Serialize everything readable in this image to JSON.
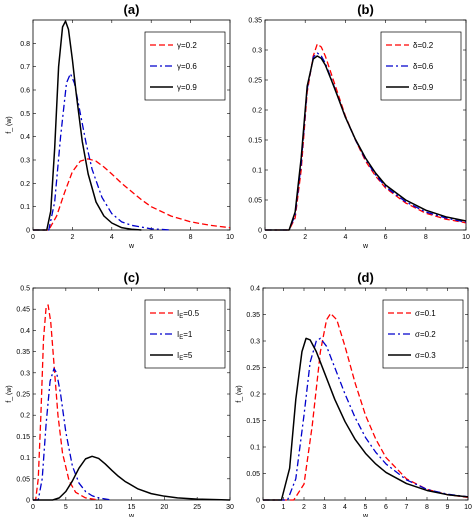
{
  "chart_data": [
    {
      "panel": "(a)",
      "type": "line",
      "title": "(a)",
      "xlabel": "w",
      "ylabel": "f_ (w)",
      "xlim": [
        0,
        10
      ],
      "ylim": [
        0,
        0.9
      ],
      "xticks": [
        0,
        2,
        4,
        6,
        8,
        10
      ],
      "yticks": [
        0,
        0.1,
        0.2,
        0.3,
        0.4,
        0.5,
        0.6,
        0.7,
        0.8
      ],
      "grid": false,
      "legend": "top-right",
      "series": [
        {
          "name": "γ=0.2",
          "color": "#ff0000",
          "style": "dashed",
          "x": [
            0,
            0.8,
            1.2,
            1.6,
            2.0,
            2.4,
            2.8,
            3.2,
            3.6,
            4.0,
            4.5,
            5.0,
            5.5,
            6.0,
            7.0,
            8.0,
            9.0,
            10.0
          ],
          "y": [
            0,
            0,
            0.06,
            0.16,
            0.25,
            0.295,
            0.305,
            0.295,
            0.27,
            0.24,
            0.2,
            0.165,
            0.13,
            0.1,
            0.06,
            0.035,
            0.02,
            0.01
          ]
        },
        {
          "name": "γ=0.6",
          "color": "#0000cc",
          "style": "dashdot",
          "x": [
            0,
            0.8,
            1.1,
            1.4,
            1.7,
            1.9,
            2.1,
            2.4,
            2.7,
            3.0,
            3.5,
            4.0,
            4.5,
            5.0,
            6.0,
            7.0
          ],
          "y": [
            0,
            0,
            0.12,
            0.4,
            0.63,
            0.67,
            0.63,
            0.5,
            0.37,
            0.26,
            0.14,
            0.07,
            0.035,
            0.02,
            0.005,
            0
          ]
        },
        {
          "name": "γ=0.9",
          "color": "#000000",
          "style": "solid",
          "x": [
            0,
            0.7,
            0.9,
            1.1,
            1.3,
            1.5,
            1.65,
            1.8,
            2.0,
            2.2,
            2.5,
            2.8,
            3.2,
            3.6,
            4.0,
            4.5,
            5.0,
            5.5
          ],
          "y": [
            0,
            0,
            0.08,
            0.35,
            0.7,
            0.87,
            0.895,
            0.86,
            0.73,
            0.58,
            0.38,
            0.24,
            0.12,
            0.06,
            0.03,
            0.01,
            0.003,
            0
          ]
        }
      ]
    },
    {
      "panel": "(b)",
      "type": "line",
      "title": "(b)",
      "xlabel": "w",
      "ylabel": "",
      "xlim": [
        0,
        10
      ],
      "ylim": [
        0,
        0.35
      ],
      "xticks": [
        0,
        2,
        4,
        6,
        8,
        10
      ],
      "yticks": [
        0,
        0.05,
        0.1,
        0.15,
        0.2,
        0.25,
        0.3,
        0.35
      ],
      "grid": false,
      "legend": "top-right",
      "series": [
        {
          "name": "δ=0.2",
          "color": "#ff0000",
          "style": "dashed",
          "x": [
            0,
            1.2,
            1.5,
            1.8,
            2.1,
            2.4,
            2.6,
            2.8,
            3.0,
            3.3,
            3.6,
            4.0,
            4.5,
            5.0,
            5.5,
            6.0,
            7.0,
            8.0,
            9.0,
            10.0
          ],
          "y": [
            0,
            0,
            0.02,
            0.1,
            0.23,
            0.29,
            0.31,
            0.305,
            0.29,
            0.26,
            0.23,
            0.19,
            0.15,
            0.115,
            0.09,
            0.07,
            0.045,
            0.028,
            0.018,
            0.012
          ]
        },
        {
          "name": "δ=0.6",
          "color": "#0000cc",
          "style": "dashdot",
          "x": [
            0,
            1.2,
            1.5,
            1.8,
            2.1,
            2.4,
            2.6,
            2.8,
            3.0,
            3.3,
            3.6,
            4.0,
            4.5,
            5.0,
            5.5,
            6.0,
            7.0,
            8.0,
            9.0,
            10.0
          ],
          "y": [
            0,
            0,
            0.025,
            0.11,
            0.235,
            0.288,
            0.295,
            0.29,
            0.278,
            0.252,
            0.225,
            0.188,
            0.15,
            0.118,
            0.092,
            0.072,
            0.047,
            0.03,
            0.02,
            0.013
          ]
        },
        {
          "name": "δ=0.9",
          "color": "#000000",
          "style": "solid",
          "x": [
            0,
            1.2,
            1.5,
            1.8,
            2.1,
            2.4,
            2.6,
            2.8,
            3.0,
            3.3,
            3.6,
            4.0,
            4.5,
            5.0,
            5.5,
            6.0,
            7.0,
            8.0,
            9.0,
            10.0
          ],
          "y": [
            0,
            0,
            0.03,
            0.12,
            0.24,
            0.285,
            0.29,
            0.286,
            0.275,
            0.25,
            0.224,
            0.188,
            0.151,
            0.12,
            0.095,
            0.075,
            0.05,
            0.033,
            0.022,
            0.015
          ]
        }
      ]
    },
    {
      "panel": "(c)",
      "type": "line",
      "title": "(c)",
      "xlabel": "w",
      "ylabel": "f_ (w)",
      "xlim": [
        0,
        30
      ],
      "ylim": [
        0,
        0.5
      ],
      "xticks": [
        0,
        5,
        10,
        15,
        20,
        25,
        30
      ],
      "yticks": [
        0,
        0.05,
        0.1,
        0.15,
        0.2,
        0.25,
        0.3,
        0.35,
        0.4,
        0.45,
        0.5
      ],
      "grid": false,
      "legend": "top-right",
      "series": [
        {
          "name": "I_E=0.5",
          "color": "#ff0000",
          "style": "dashed",
          "x": [
            0,
            0.4,
            0.8,
            1.2,
            1.6,
            2.0,
            2.3,
            2.7,
            3.2,
            3.8,
            4.5,
            5.5,
            6.5,
            8.0,
            10.0
          ],
          "y": [
            0,
            0,
            0.05,
            0.2,
            0.38,
            0.455,
            0.46,
            0.42,
            0.32,
            0.2,
            0.11,
            0.045,
            0.018,
            0.005,
            0
          ]
        },
        {
          "name": "I_E=1",
          "color": "#0000cc",
          "style": "dashdot",
          "x": [
            0,
            0.8,
            1.4,
            2.0,
            2.6,
            3.2,
            3.6,
            4.2,
            5.0,
            6.0,
            7.0,
            8.0,
            9.0,
            10.0,
            12.0
          ],
          "y": [
            0,
            0,
            0.05,
            0.18,
            0.28,
            0.31,
            0.3,
            0.25,
            0.16,
            0.08,
            0.04,
            0.02,
            0.01,
            0.005,
            0
          ]
        },
        {
          "name": "I_E=5",
          "color": "#000000",
          "style": "solid",
          "x": [
            0,
            3.0,
            4.0,
            5.0,
            6.0,
            7.0,
            8.0,
            9.0,
            10.0,
            11.0,
            12.0,
            13.0,
            14.0,
            16.0,
            18.0,
            20.0,
            22.0,
            25.0,
            28.0,
            30.0
          ],
          "y": [
            0,
            0,
            0.005,
            0.02,
            0.045,
            0.075,
            0.097,
            0.103,
            0.098,
            0.085,
            0.07,
            0.056,
            0.044,
            0.026,
            0.015,
            0.009,
            0.005,
            0.002,
            0.001,
            0
          ]
        }
      ]
    },
    {
      "panel": "(d)",
      "type": "line",
      "title": "(d)",
      "xlabel": "w",
      "ylabel": "f_ (w)",
      "xlim": [
        0,
        10
      ],
      "ylim": [
        0,
        0.4
      ],
      "xticks": [
        0,
        1,
        2,
        3,
        4,
        5,
        6,
        7,
        8,
        9,
        10
      ],
      "yticks": [
        0,
        0.05,
        0.1,
        0.15,
        0.2,
        0.25,
        0.3,
        0.35,
        0.4
      ],
      "grid": false,
      "legend": "top-right",
      "series": [
        {
          "name": "σ=0.1",
          "color": "#ff0000",
          "style": "dashed",
          "x": [
            0,
            1.5,
            2.0,
            2.4,
            2.8,
            3.1,
            3.3,
            3.6,
            4.0,
            4.5,
            5.0,
            5.5,
            6.0,
            7.0,
            8.0,
            9.0,
            10.0
          ],
          "y": [
            0,
            0,
            0.03,
            0.14,
            0.28,
            0.34,
            0.352,
            0.34,
            0.29,
            0.22,
            0.16,
            0.115,
            0.08,
            0.04,
            0.02,
            0.01,
            0.005
          ]
        },
        {
          "name": "σ=0.2",
          "color": "#0000cc",
          "style": "dashdot",
          "x": [
            0,
            1.2,
            1.6,
            2.0,
            2.3,
            2.6,
            2.8,
            3.1,
            3.5,
            4.0,
            4.5,
            5.0,
            5.5,
            6.0,
            7.0,
            8.0,
            9.0,
            10.0
          ],
          "y": [
            0,
            0,
            0.04,
            0.16,
            0.26,
            0.3,
            0.305,
            0.29,
            0.25,
            0.2,
            0.155,
            0.118,
            0.09,
            0.068,
            0.038,
            0.02,
            0.011,
            0.006
          ]
        },
        {
          "name": "σ=0.3",
          "color": "#000000",
          "style": "solid",
          "x": [
            0,
            0.9,
            1.3,
            1.6,
            1.9,
            2.1,
            2.3,
            2.6,
            3.0,
            3.5,
            4.0,
            4.5,
            5.0,
            5.5,
            6.0,
            7.0,
            8.0,
            9.0,
            10.0
          ],
          "y": [
            0,
            0,
            0.06,
            0.19,
            0.28,
            0.305,
            0.302,
            0.28,
            0.24,
            0.19,
            0.148,
            0.114,
            0.088,
            0.068,
            0.052,
            0.031,
            0.018,
            0.01,
            0.006
          ]
        }
      ]
    }
  ]
}
